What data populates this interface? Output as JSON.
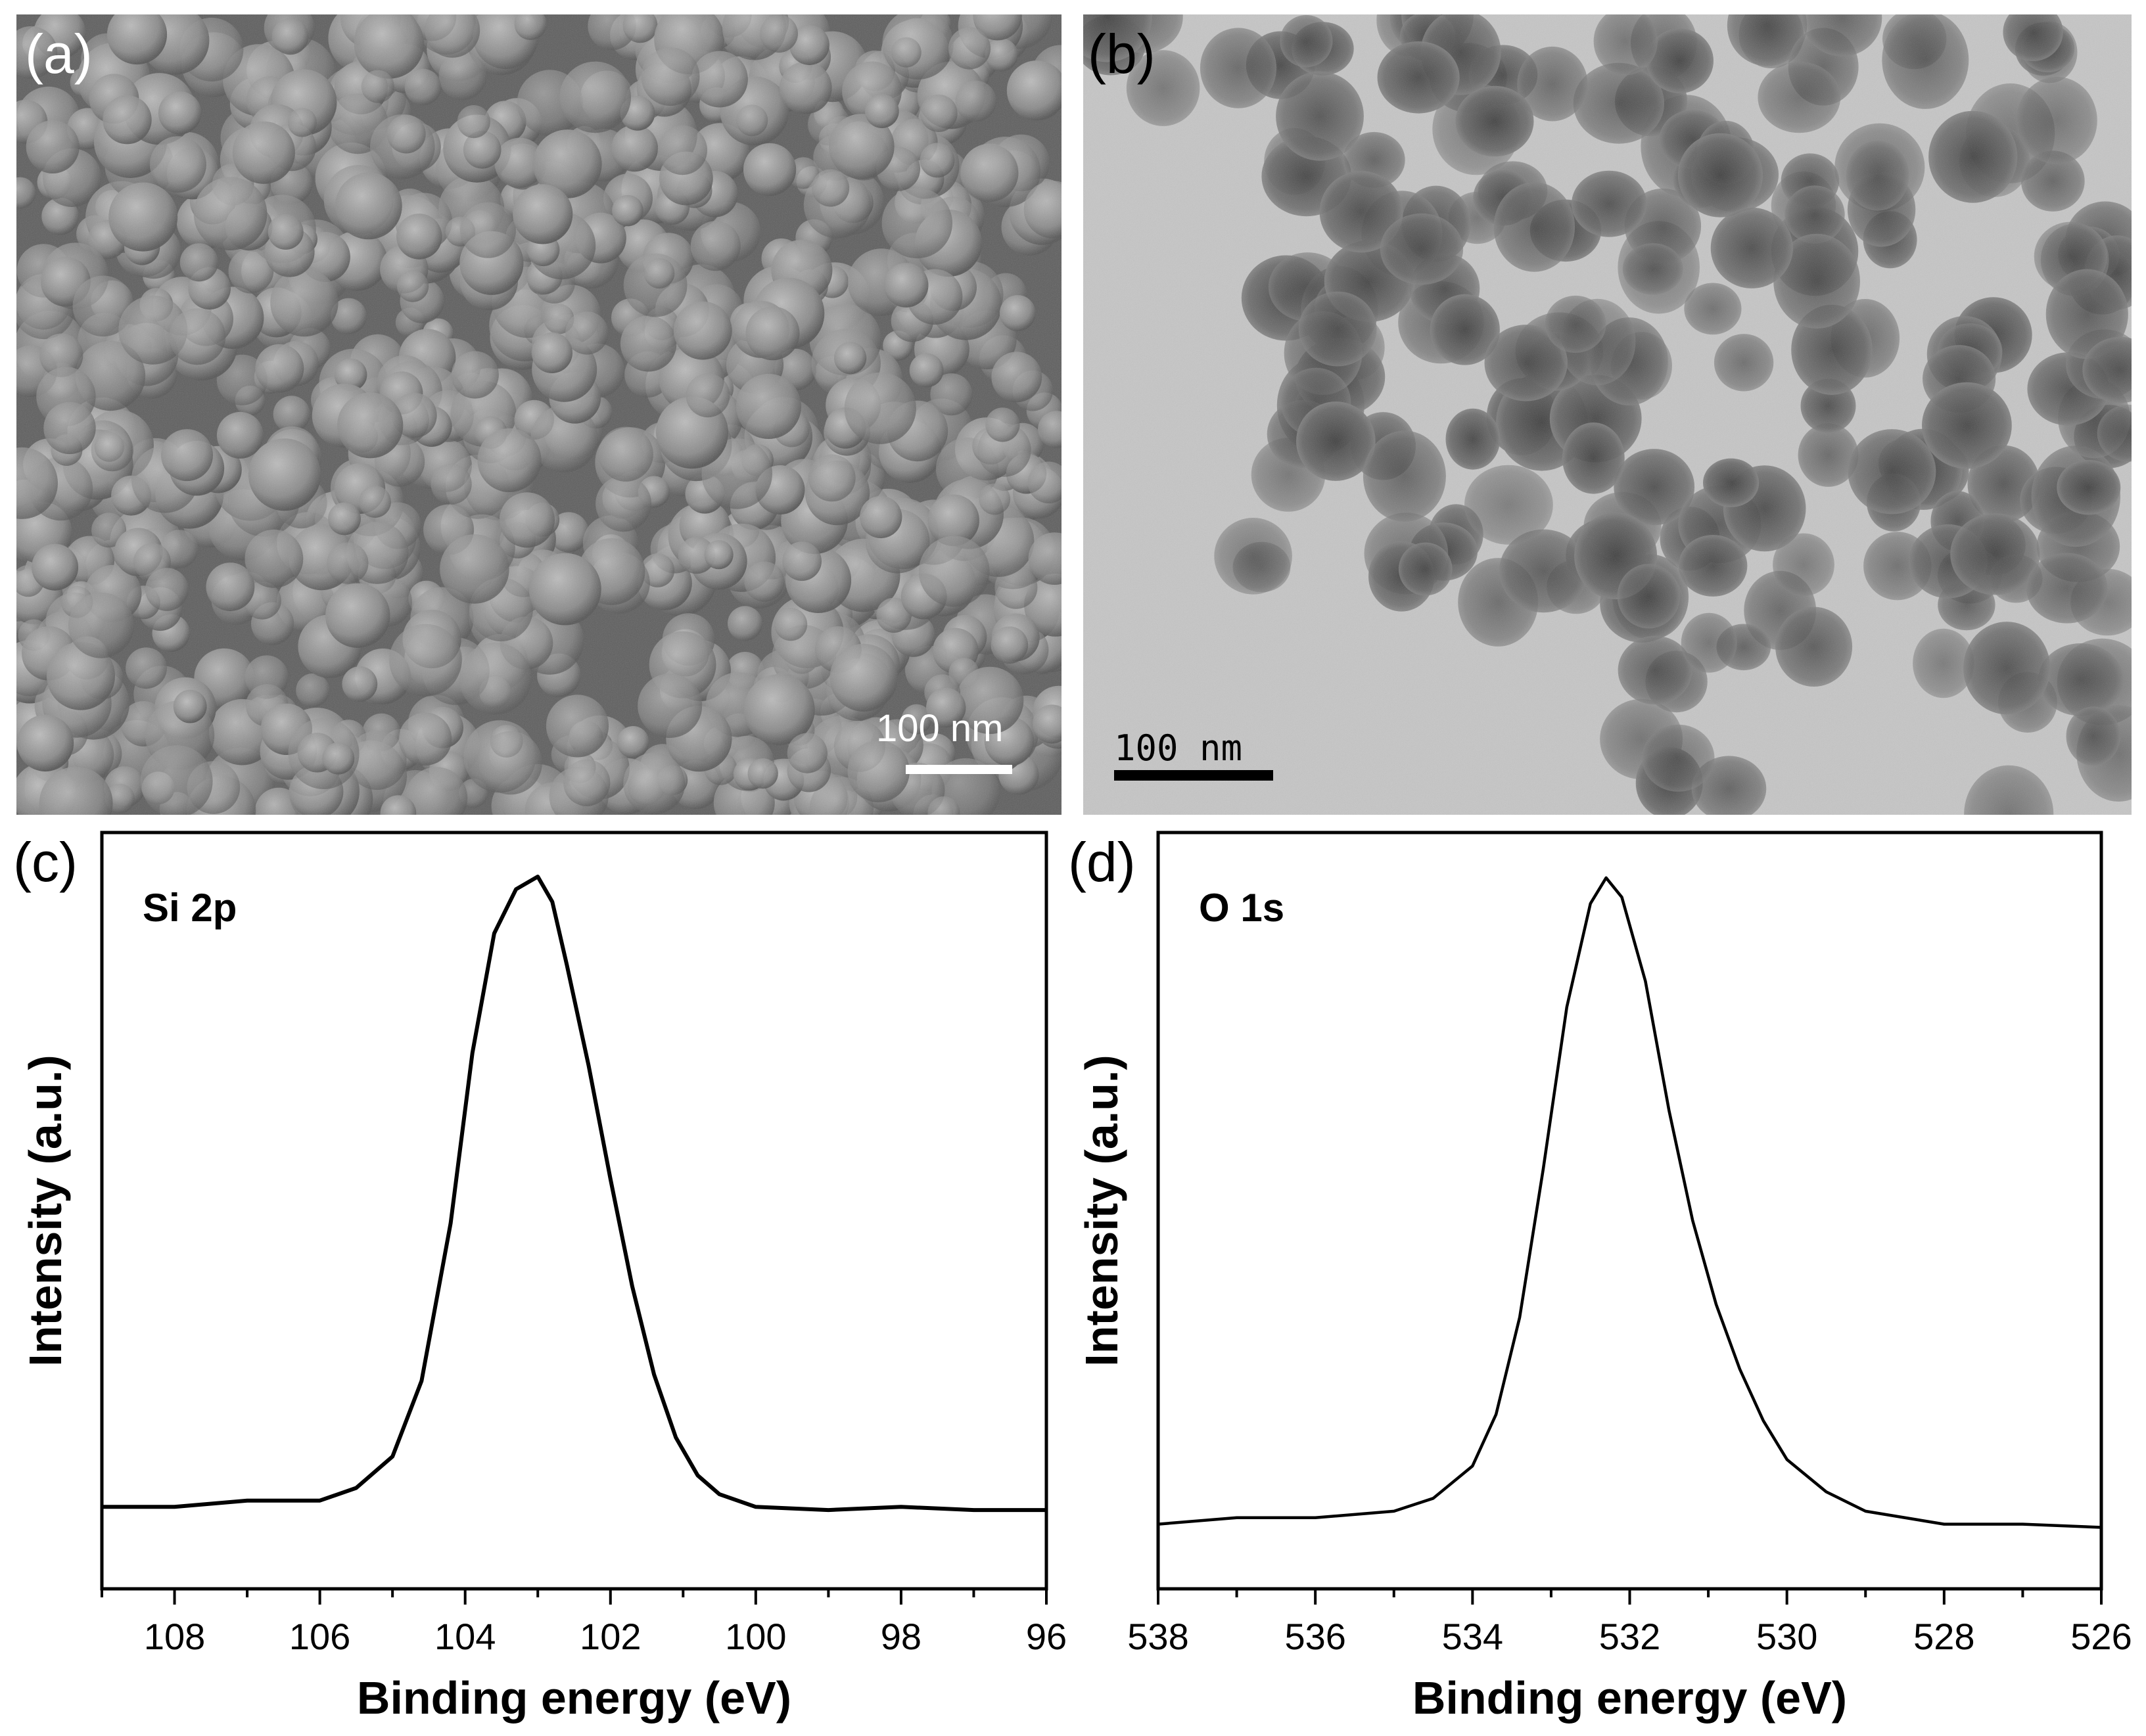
{
  "panels": {
    "a": {
      "label": "(a)",
      "scale_bar": "100 nm",
      "image": "sem-micrograph-nanoparticles"
    },
    "b": {
      "label": "(b)",
      "scale_bar": "100 nm",
      "image": "tem-micrograph-mesoporous-nanoparticles"
    },
    "c": {
      "label": "(c)"
    },
    "d": {
      "label": "(d)"
    }
  },
  "colors": {
    "line": "#000000",
    "sem_bg": "#5e5e5e",
    "tem_bg": "#c6c6c6"
  },
  "chart_data": [
    {
      "type": "line",
      "panel": "c",
      "annotation": "Si 2p",
      "xlabel": "Binding energy (eV)",
      "ylabel": "Intensity (a.u.)",
      "xlim": [
        109,
        96
      ],
      "x_reversed": true,
      "ylim": [
        -0.13,
        1.07
      ],
      "yticks_labeled": false,
      "xticks": [
        108,
        106,
        104,
        102,
        100,
        98,
        96
      ],
      "x_minor_step": 1,
      "series": [
        {
          "x": [
            109,
            108,
            107,
            106,
            105.5,
            105,
            104.6,
            104.2,
            103.9,
            103.6,
            103.3,
            103.0,
            102.8,
            102.6,
            102.3,
            102.0,
            101.7,
            101.4,
            101.1,
            100.8,
            100.5,
            100,
            99,
            98,
            97,
            96
          ],
          "y": [
            0.0,
            0.0,
            0.01,
            0.01,
            0.03,
            0.08,
            0.2,
            0.45,
            0.72,
            0.91,
            0.98,
            1.0,
            0.96,
            0.86,
            0.7,
            0.52,
            0.35,
            0.21,
            0.11,
            0.05,
            0.02,
            0.0,
            -0.005,
            0.0,
            -0.005,
            -0.005
          ]
        }
      ]
    },
    {
      "type": "line",
      "panel": "d",
      "annotation": "O 1s",
      "xlabel": "Binding energy (eV)",
      "ylabel": "Intensity (a.u.)",
      "xlim": [
        538,
        526
      ],
      "x_reversed": true,
      "ylim": [
        -0.1,
        1.07
      ],
      "yticks_labeled": false,
      "xticks": [
        538,
        536,
        534,
        532,
        530,
        528,
        526
      ],
      "x_minor_step": 1,
      "series": [
        {
          "x": [
            538,
            537,
            536,
            535,
            534.5,
            534,
            533.7,
            533.4,
            533.1,
            532.8,
            532.5,
            532.3,
            532.1,
            531.8,
            531.5,
            531.2,
            530.9,
            530.6,
            530.3,
            530,
            529.5,
            529,
            528,
            527,
            526
          ],
          "y": [
            0.0,
            0.01,
            0.01,
            0.02,
            0.04,
            0.09,
            0.17,
            0.32,
            0.55,
            0.8,
            0.96,
            1.0,
            0.97,
            0.84,
            0.64,
            0.47,
            0.34,
            0.24,
            0.16,
            0.1,
            0.05,
            0.02,
            0.0,
            0.0,
            -0.005
          ]
        }
      ]
    }
  ]
}
